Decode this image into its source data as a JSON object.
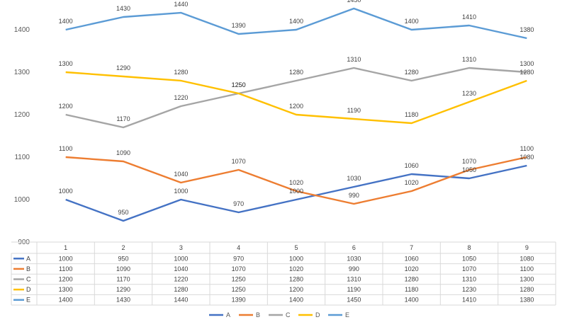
{
  "chart_data": {
    "type": "line",
    "title": "",
    "xlabel": "",
    "ylabel": "",
    "x": [
      "1",
      "2",
      "3",
      "4",
      "5",
      "6",
      "7",
      "8",
      "9"
    ],
    "ylim": [
      900,
      1450
    ],
    "yticks": [
      "1400",
      "1300",
      "1200",
      "1100",
      "1000",
      "900"
    ],
    "grid": false,
    "legend": "bottom",
    "data_table": true,
    "series": [
      {
        "name": "A",
        "color": "#4472C4",
        "values": [
          1000,
          950,
          1000,
          970,
          1000,
          1030,
          1060,
          1050,
          1080
        ]
      },
      {
        "name": "B",
        "color": "#ED7D31",
        "values": [
          1100,
          1090,
          1040,
          1070,
          1020,
          990,
          1020,
          1070,
          1100
        ]
      },
      {
        "name": "C",
        "color": "#A5A5A5",
        "values": [
          1200,
          1170,
          1220,
          1250,
          1280,
          1310,
          1280,
          1310,
          1300
        ]
      },
      {
        "name": "D",
        "color": "#FFC000",
        "values": [
          1300,
          1290,
          1280,
          1250,
          1200,
          1190,
          1180,
          1230,
          1280
        ]
      },
      {
        "name": "E",
        "color": "#5B9BD5",
        "values": [
          1400,
          1430,
          1440,
          1390,
          1400,
          1450,
          1400,
          1410,
          1380
        ]
      }
    ]
  }
}
